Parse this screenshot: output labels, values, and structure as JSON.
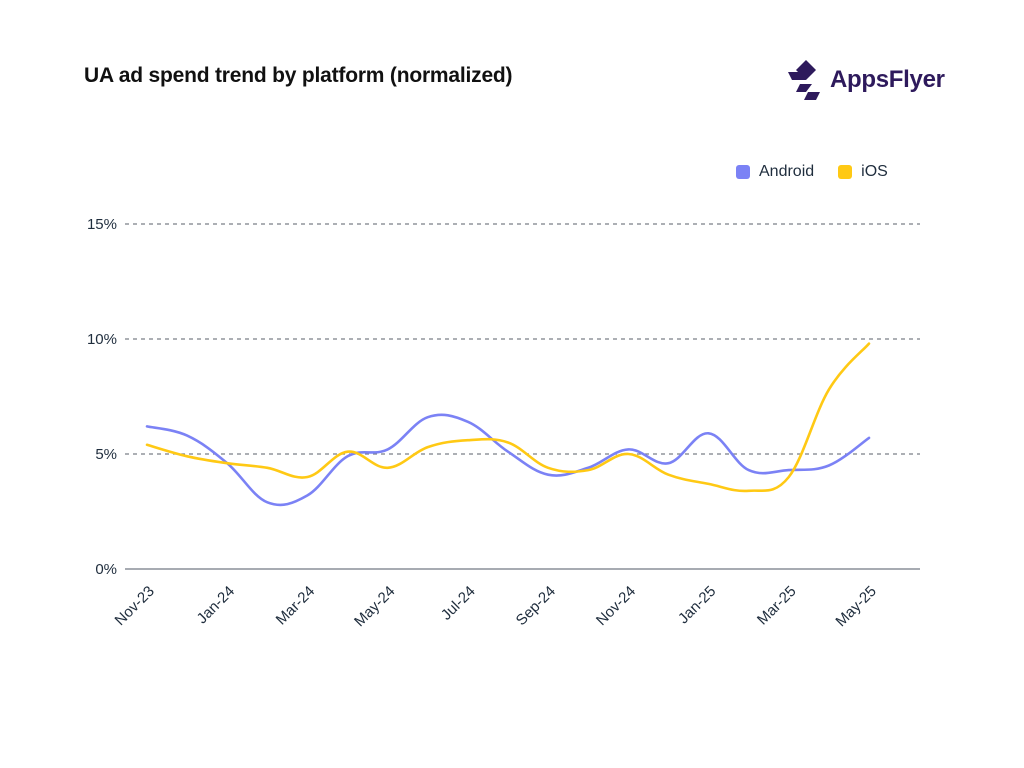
{
  "header": {
    "title": "UA ad spend trend by platform (normalized)",
    "brand": "AppsFlyer",
    "brand_color": "#2e1a5c"
  },
  "legend": [
    {
      "label": "Android",
      "color": "#7b82f5"
    },
    {
      "label": "iOS",
      "color": "#ffc914"
    }
  ],
  "chart_data": {
    "type": "line",
    "title": "UA ad spend trend by platform (normalized)",
    "xlabel": "",
    "ylabel": "",
    "x": [
      "Nov-23",
      "Dec-23",
      "Jan-24",
      "Feb-24",
      "Mar-24",
      "Apr-24",
      "May-24",
      "Jun-24",
      "Jul-24",
      "Aug-24",
      "Sep-24",
      "Oct-24",
      "Nov-24",
      "Dec-24",
      "Jan-25",
      "Feb-25",
      "Mar-25",
      "Apr-25",
      "May-25"
    ],
    "x_tick_labels": [
      "Nov-23",
      "Jan-24",
      "Mar-24",
      "May-24",
      "Jul-24",
      "Sep-24",
      "Nov-24",
      "Jan-25",
      "Mar-25",
      "May-25"
    ],
    "y_ticks": [
      0,
      5,
      10,
      15
    ],
    "y_tick_labels": [
      "0%",
      "5%",
      "10%",
      "15%"
    ],
    "ylim": [
      0,
      15
    ],
    "y_unit": "%",
    "grid": "horizontal dashed",
    "legend_position": "top-right",
    "series": [
      {
        "name": "Android",
        "color": "#7b82f5",
        "values": [
          6.2,
          5.8,
          4.6,
          2.9,
          3.2,
          4.9,
          5.2,
          6.6,
          6.4,
          5.1,
          4.1,
          4.4,
          5.2,
          4.6,
          5.9,
          4.3,
          4.3,
          4.5,
          5.7
        ]
      },
      {
        "name": "iOS",
        "color": "#ffc914",
        "values": [
          5.4,
          4.9,
          4.6,
          4.4,
          4.0,
          5.1,
          4.4,
          5.3,
          5.6,
          5.5,
          4.4,
          4.3,
          5.0,
          4.1,
          3.7,
          3.4,
          4.0,
          7.8,
          9.8
        ]
      }
    ]
  }
}
